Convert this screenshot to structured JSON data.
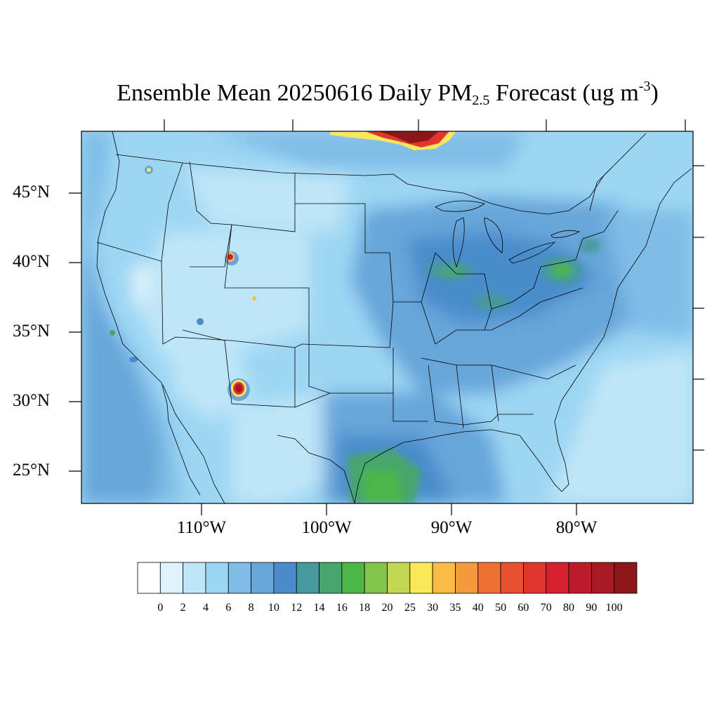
{
  "title": {
    "main": "Ensemble Mean 20250616 Daily PM",
    "subscript": "2.5",
    "suffix": " Forecast (ug m",
    "superscript": "-3",
    "close": ")"
  },
  "lat_labels": [
    "45°N",
    "40°N",
    "35°N",
    "30°N",
    "25°N"
  ],
  "lon_labels": [
    "110°W",
    "100°W",
    "90°W",
    "80°W"
  ],
  "colorbar": {
    "labels": [
      "0",
      "2",
      "4",
      "6",
      "8",
      "10",
      "12",
      "14",
      "16",
      "18",
      "20",
      "25",
      "30",
      "35",
      "40",
      "50",
      "60",
      "70",
      "80",
      "90",
      "100"
    ],
    "colors": [
      "#ffffff",
      "#e0f3fc",
      "#bfe6f8",
      "#9dd6f3",
      "#7fbde7",
      "#68a6da",
      "#4a8ccb",
      "#46999c",
      "#47a66d",
      "#4cb648",
      "#83c54b",
      "#c3d852",
      "#f8e85a",
      "#f8bc45",
      "#f59a3c",
      "#f07033",
      "#e8512f",
      "#e0362d",
      "#d42030",
      "#bc1b2b",
      "#a81a23",
      "#8c1618"
    ]
  }
}
